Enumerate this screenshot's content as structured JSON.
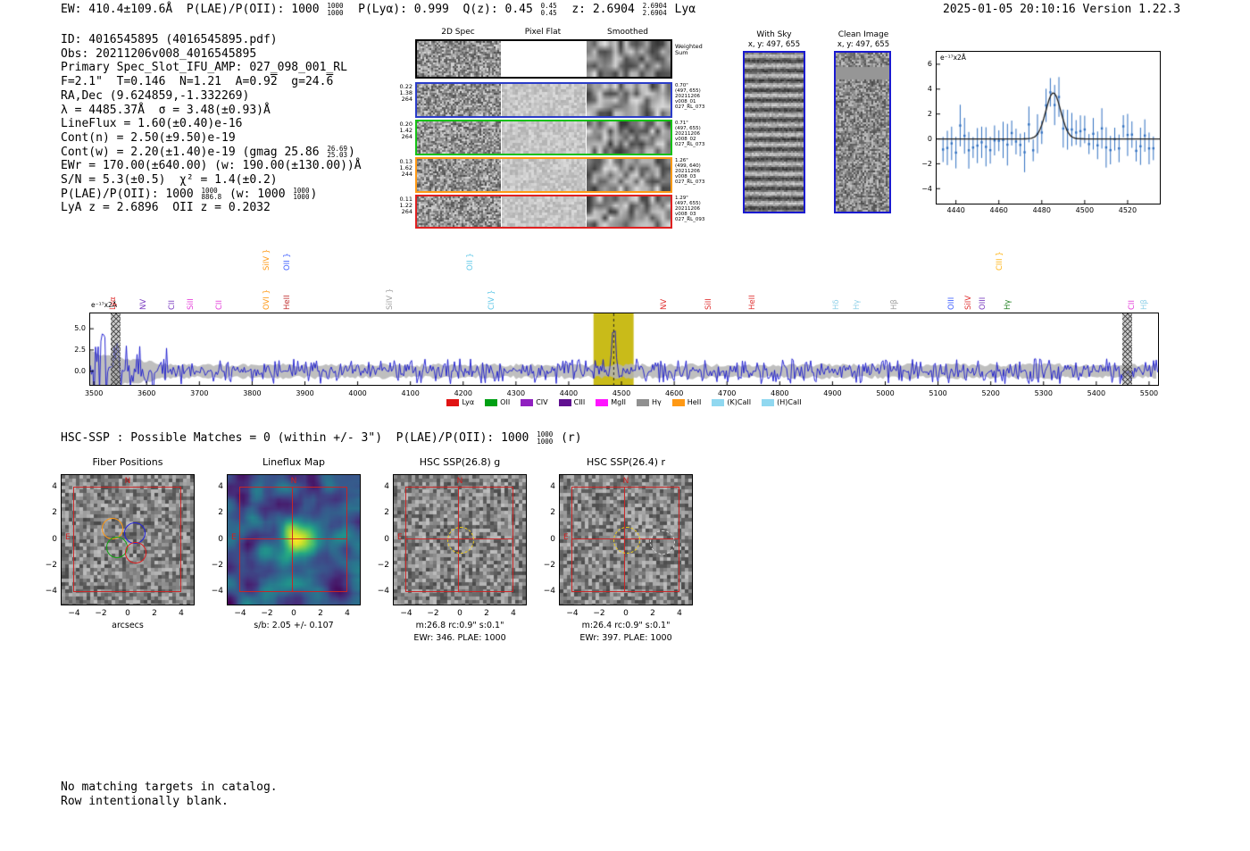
{
  "header": {
    "left_segments": [
      {
        "t": "EW: 410.4±109.6Å  P(LAE)/P(OII): 1000 "
      },
      {
        "stack": [
          "1000",
          "1000"
        ]
      },
      {
        "t": "  P(Lyα): 0.999  Q(z): 0.45 "
      },
      {
        "stack": [
          "0.45",
          "0.45"
        ]
      },
      {
        "t": "  z: 2.6904 "
      },
      {
        "stack": [
          "2.6904",
          "2.6904"
        ]
      },
      {
        "t": " Lyα"
      }
    ],
    "right": "2025-01-05 20:10:16  Version 1.22.3"
  },
  "info": {
    "lines": [
      [
        {
          "t": "ID: 4016545895 (4016545895.pdf)"
        }
      ],
      [
        {
          "t": "Obs: 20211206v008_4016545895"
        }
      ],
      [
        {
          "t": "Primary Spec_Slot_IFU_AMP: 027_098_001_RL"
        }
      ],
      [
        {
          "t": "F=2.1\"  T=0.146  N=1.21  A=0.9"
        },
        {
          "ov": "2"
        },
        {
          "t": "  g=24."
        },
        {
          "ov": "6"
        }
      ],
      [
        {
          "t": "RA,Dec (9.624859,-1.332269)"
        }
      ],
      [
        {
          "t": "λ = 4485.37Å  σ = 3.48(±0.93)Å"
        }
      ],
      [
        {
          "t": "LineFlux = 1.60(±0.40)e-16"
        }
      ],
      [
        {
          "t": "Cont(n) = 2.50(±9.50)e-19"
        }
      ],
      [
        {
          "t": "Cont(w) = 2.20(±1.40)e-19 (gmag 25.86 "
        },
        {
          "stack": [
            "26.69",
            "25.03"
          ]
        },
        {
          "t": ")"
        }
      ],
      [
        {
          "t": "EWr = 170.00(±640.00) (w: 190.00(±130.00))Å"
        }
      ],
      [
        {
          "t": "S/N = 5.3(±0.5)  χ² = 1.4(±0.2)"
        }
      ],
      [
        {
          "t": "P(LAE)/P(OII): 1000 "
        },
        {
          "stack": [
            "1000",
            "886.8"
          ]
        },
        {
          "t": " (w: 1000 "
        },
        {
          "stack": [
            "1000",
            "1000"
          ]
        },
        {
          "t": ")"
        }
      ],
      [
        {
          "t": "LyA z = 2.6896  OII z = 0.2032"
        }
      ]
    ]
  },
  "twod": {
    "headers": [
      "2D Spec",
      "Pixel Flat",
      "Smoothed"
    ],
    "rows": [
      {
        "border": "#000000",
        "left": null,
        "right": [
          "Weighted",
          "Sum"
        ]
      },
      {
        "border": "#2a3cc8",
        "left": [
          "0.22",
          "1.38",
          "264"
        ],
        "right": [
          "0.70\"",
          "(497, 655)",
          "20211206",
          "v008_01",
          "027_RL_073"
        ]
      },
      {
        "border": "#15c215",
        "left": [
          "0.20",
          "1.42",
          "264"
        ],
        "right": [
          "0.71\"",
          "(497, 655)",
          "20211206",
          "v008_02",
          "027_RL_073"
        ]
      },
      {
        "border": "#ff9914",
        "left": [
          "0.13",
          "1.62",
          "244"
        ],
        "right": [
          "1.26\"",
          "(499, 640)",
          "20211206",
          "v008_03",
          "027_RL_073"
        ]
      },
      {
        "border": "#e02020",
        "left": [
          "0.11",
          "1.22",
          "264"
        ],
        "right": [
          "1.29\"",
          "(497, 655)",
          "20211206",
          "v008_03",
          "027_RL_093"
        ]
      }
    ]
  },
  "withsky": {
    "title": "With Sky",
    "coords": "x, y: 497, 655"
  },
  "clean": {
    "title": "Clean Image",
    "coords": "x, y: 497, 655"
  },
  "chart_data": [
    {
      "name": "line_fit",
      "type": "scatter",
      "corner_label": "e⁻¹⁷x2Å",
      "xlim": [
        4431,
        4535
      ],
      "ylim": [
        -5.2,
        7.0
      ],
      "xticks": [
        {
          "v": 4440,
          "label": "4440"
        },
        {
          "v": 4460,
          "label": "4460"
        },
        {
          "v": 4480,
          "label": "4480"
        },
        {
          "v": 4500,
          "label": "4500"
        },
        {
          "v": 4520,
          "label": "4520"
        }
      ],
      "yticks": [
        {
          "v": 6,
          "label": "6"
        },
        {
          "v": 4,
          "label": "4"
        },
        {
          "v": 2,
          "label": "2"
        },
        {
          "v": 0,
          "label": "0"
        },
        {
          "v": -2,
          "label": "−2"
        },
        {
          "v": -4,
          "label": "−4"
        }
      ],
      "fit": {
        "center": 4485.37,
        "sigma": 3.48,
        "amplitude": 3.7,
        "baseline": 0.0,
        "color": "#1a1a1a"
      },
      "point_color": "#2f6fc0",
      "n_points": 50
    },
    {
      "name": "full_spectrum",
      "type": "line",
      "corner_label": "e⁻¹⁷x2Å",
      "xlim": [
        3493,
        5517
      ],
      "ylim": [
        -1.6,
        6.8
      ],
      "xticks": [
        3500,
        3600,
        3700,
        3800,
        3900,
        4000,
        4100,
        4200,
        4300,
        4400,
        4500,
        4600,
        4700,
        4800,
        4900,
        5000,
        5100,
        5200,
        5300,
        5400,
        5500
      ],
      "yticks": [
        {
          "v": 5.0,
          "label": "5.0"
        },
        {
          "v": 2.5,
          "label": "2.5"
        },
        {
          "v": 0.0,
          "label": "0.0"
        }
      ],
      "line_color": "#1414cd",
      "error_band_color": "#b4b4b4",
      "highlight": {
        "x0": 4447,
        "x1": 4523,
        "color": "#c3b400",
        "dashed_center": 4485.37
      },
      "hatched_regions": [
        [
          3532,
          3551
        ],
        [
          5449,
          5468
        ]
      ],
      "detected_line": {
        "center": 4485.37,
        "sigma": 3.48,
        "peak": 5.6
      },
      "emission_labels": [
        {
          "text": "Lyα",
          "wl": 3521,
          "color": "#e03030",
          "lane": 0
        },
        {
          "text": "NV",
          "wl": 3580,
          "color": "#7a3bc0",
          "lane": 0
        },
        {
          "text": "CII",
          "wl": 3633,
          "color": "#7a3bc0",
          "lane": 0
        },
        {
          "text": "SiII",
          "wl": 3669,
          "color": "#e43bd9",
          "lane": 0
        },
        {
          "text": "CII",
          "wl": 3723,
          "color": "#e43bd9",
          "lane": 0
        },
        {
          "text": "SiIV }",
          "wl": 3812,
          "color": "#ff9914",
          "lane": 1
        },
        {
          "text": "OVI }",
          "wl": 3812,
          "color": "#ff9914",
          "lane": 0
        },
        {
          "text": "OII }",
          "wl": 3851,
          "color": "#4060ff",
          "lane": 1
        },
        {
          "text": "HeII",
          "wl": 3851,
          "color": "#c03030",
          "lane": 0
        },
        {
          "text": "SiIV }",
          "wl": 4046,
          "color": "#a0a0a0",
          "lane": 0
        },
        {
          "text": "OII }",
          "wl": 4198,
          "color": "#60c8e8",
          "lane": 1
        },
        {
          "text": "CIV }",
          "wl": 4240,
          "color": "#60c8e8",
          "lane": 0
        },
        {
          "text": "NV",
          "wl": 4566,
          "color": "#e03030",
          "lane": 0
        },
        {
          "text": "SiII",
          "wl": 4650,
          "color": "#e03030",
          "lane": 0
        },
        {
          "text": "HeII",
          "wl": 4734,
          "color": "#e03030",
          "lane": 0
        },
        {
          "text": "Hδ",
          "wl": 4893,
          "color": "#90d0e8",
          "lane": 0
        },
        {
          "text": "Hγ",
          "wl": 4932,
          "color": "#90d0e8",
          "lane": 0
        },
        {
          "text": "Hβ",
          "wl": 5002,
          "color": "#a0a0a0",
          "lane": 0
        },
        {
          "text": "OIII",
          "wl": 5111,
          "color": "#4060ff",
          "lane": 0
        },
        {
          "text": "SiIV",
          "wl": 5143,
          "color": "#e03030",
          "lane": 0
        },
        {
          "text": "OIII",
          "wl": 5170,
          "color": "#7a3bc0",
          "lane": 0
        },
        {
          "text": "CIII }",
          "wl": 5203,
          "color": "#ffb414",
          "lane": 1
        },
        {
          "text": "Hγ",
          "wl": 5218,
          "color": "#208020",
          "lane": 0
        },
        {
          "text": "CII",
          "wl": 5452,
          "color": "#e43bd9",
          "lane": 0
        },
        {
          "text": "Hβ",
          "wl": 5477,
          "color": "#90d0e8",
          "lane": 0
        }
      ],
      "legend": [
        {
          "label": "Lyα",
          "color": "#e01414"
        },
        {
          "label": "OII",
          "color": "#00a014"
        },
        {
          "label": "CIV",
          "color": "#9020c0"
        },
        {
          "label": "CIII",
          "color": "#601090"
        },
        {
          "label": "MgII",
          "color": "#ff14ff"
        },
        {
          "label": "Hγ",
          "color": "#909090"
        },
        {
          "label": "HeII",
          "color": "#ff9914"
        },
        {
          "label": "(K)CaII",
          "color": "#90d8f0"
        },
        {
          "label": "(H)CaII",
          "color": "#90d8f0"
        }
      ]
    }
  ],
  "hsc": {
    "segments": [
      {
        "t": "HSC-SSP : Possible Matches = 0 (within +/- 3\")  P(LAE)/P(OII): 1000 "
      },
      {
        "stack": [
          "1000",
          "1000"
        ]
      },
      {
        "t": " (r)"
      }
    ]
  },
  "cutouts": [
    {
      "title": "Fiber Positions",
      "xlabel": "arcsecs",
      "style": "gray",
      "ticks": [
        {
          "v": -4,
          "label": "−4"
        },
        {
          "v": -2,
          "label": "−2"
        },
        {
          "v": 0,
          "label": "0"
        },
        {
          "v": 2,
          "label": "2"
        },
        {
          "v": 4,
          "label": "4"
        }
      ],
      "compass": {
        "n": "N",
        "e": "E"
      },
      "captions": [],
      "fibers": [
        {
          "dx": -1.2,
          "dy": 0.9,
          "r": 0.75,
          "color": "#ff9914"
        },
        {
          "dx": 0.5,
          "dy": 0.55,
          "r": 0.75,
          "color": "#2222dd"
        },
        {
          "dx": -0.9,
          "dy": -0.55,
          "r": 0.75,
          "color": "#11a511"
        },
        {
          "dx": 0.55,
          "dy": -0.95,
          "r": 0.75,
          "color": "#e02020"
        }
      ]
    },
    {
      "title": "Lineflux Map",
      "xlabel": null,
      "style": "viridis",
      "ticks": [
        {
          "v": -4,
          "label": "−4"
        },
        {
          "v": -2,
          "label": "−2"
        },
        {
          "v": 0,
          "label": "0"
        },
        {
          "v": 2,
          "label": "2"
        },
        {
          "v": 4,
          "label": "4"
        }
      ],
      "compass": {
        "n": "N",
        "e": "E"
      },
      "crosshair": true,
      "captions": [
        "s/b: 2.05 +/- 0.107"
      ]
    },
    {
      "title": "HSC SSP(26.8) g",
      "xlabel": null,
      "style": "gray",
      "ticks": [
        {
          "v": -4,
          "label": "−4"
        },
        {
          "v": -2,
          "label": "−2"
        },
        {
          "v": 0,
          "label": "0"
        },
        {
          "v": 2,
          "label": "2"
        },
        {
          "v": 4,
          "label": "4"
        }
      ],
      "compass": {
        "n": "N",
        "e": "E"
      },
      "crosshair": true,
      "captions": [
        "m:26.8 rc:0.9\"  s:0.1\"",
        "EWr: 346. PLAE: 1000"
      ],
      "aperture": {
        "dx": 0,
        "dy": 0,
        "r": 0.95,
        "color": "#e8c81e"
      }
    },
    {
      "title": "HSC SSP(26.4) r",
      "xlabel": null,
      "style": "gray",
      "ticks": [
        {
          "v": -4,
          "label": "−4"
        },
        {
          "v": -2,
          "label": "−2"
        },
        {
          "v": 0,
          "label": "0"
        },
        {
          "v": 2,
          "label": "2"
        },
        {
          "v": 4,
          "label": "4"
        }
      ],
      "compass": {
        "n": "N",
        "e": "E"
      },
      "crosshair": true,
      "captions": [
        "m:26.4 rc:0.9\"  s:0.1\"",
        "EWr: 397. PLAE: 1000"
      ],
      "aperture": {
        "dx": 0,
        "dy": 0,
        "r": 0.95,
        "color": "#e8c81e"
      },
      "extra_aperture": {
        "dx": 2.7,
        "dy": -0.2,
        "r": 0.85,
        "color": "#d8d8d8"
      }
    }
  ],
  "footer": {
    "lines": [
      "No matching targets in catalog.",
      "Row intentionally blank."
    ]
  }
}
